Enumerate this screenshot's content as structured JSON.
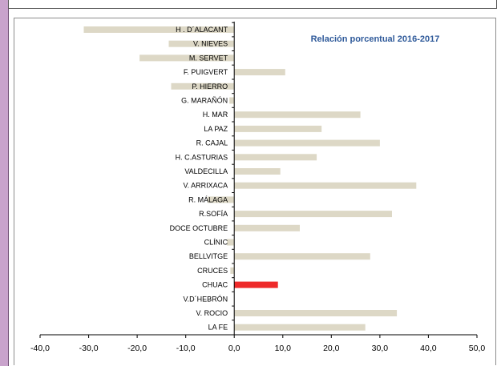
{
  "chart_data": {
    "type": "bar",
    "orientation": "horizontal",
    "title": "Relación porcentual 2016-2017",
    "xlabel": "",
    "ylabel": "",
    "xlim": [
      -40,
      50
    ],
    "x_ticks": [
      "-40,0",
      "-30,0",
      "-20,0",
      "-10,0",
      "0,0",
      "10,0",
      "20,0",
      "30,0",
      "40,0",
      "50,0"
    ],
    "x_tick_values": [
      -40,
      -30,
      -20,
      -10,
      0,
      10,
      20,
      30,
      40,
      50
    ],
    "grid": false,
    "legend": "none",
    "bar_color": "#ddd8c6",
    "highlight_color": "#ee2a2a",
    "highlight_category": "CHUAC",
    "categories": [
      "H . D´ALACANT",
      "V. NIEVES",
      "M. SERVET",
      "F. PUIGVERT",
      "P. HIERRO",
      "G. MARAÑÓN",
      "H. MAR",
      "LA PAZ",
      "R. CAJAL",
      "H. C.ASTURIAS",
      "VALDECILLA",
      "V. ARRIXACA",
      "R. MÁLAGA",
      "R.SOFÍA",
      "DOCE OCTUBRE",
      "CLÍNIC",
      "BELLVITGE",
      "CRUCES",
      "CHUAC",
      "V.D´HEBRÓN",
      "V. ROCIO",
      "LA FE"
    ],
    "values": [
      -31.0,
      -13.5,
      -19.5,
      10.5,
      -13.0,
      -1.0,
      26.0,
      18.0,
      30.0,
      17.0,
      9.5,
      37.5,
      -5.5,
      32.5,
      13.5,
      -1.5,
      28.0,
      -0.8,
      9.0,
      0.0,
      33.5,
      27.0
    ]
  }
}
